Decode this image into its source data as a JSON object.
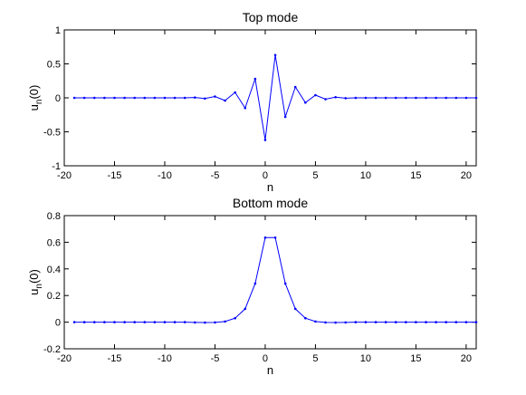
{
  "chart_data": [
    {
      "type": "line",
      "title": "Top mode",
      "xlabel": "n",
      "ylabel": "u",
      "ylabel_sub": "n",
      "ylabel_suffix": "(0)",
      "xlim": [
        -20,
        21
      ],
      "ylim": [
        -1,
        1
      ],
      "xticks": [
        -20,
        -15,
        -10,
        -5,
        0,
        5,
        10,
        15,
        20
      ],
      "yticks": [
        -1,
        -0.5,
        0,
        0.5,
        1
      ],
      "grid": false,
      "color": "#0000ff",
      "x": [
        -19,
        -18,
        -17,
        -16,
        -15,
        -14,
        -13,
        -12,
        -11,
        -10,
        -9,
        -8,
        -7,
        -6,
        -5,
        -4,
        -3,
        -2,
        -1,
        0,
        1,
        2,
        3,
        4,
        5,
        6,
        7,
        8,
        9,
        10,
        11,
        12,
        13,
        14,
        15,
        16,
        17,
        18,
        19,
        20,
        21
      ],
      "y": [
        0,
        0,
        0,
        0,
        0,
        0,
        0,
        0,
        0,
        0,
        0,
        0,
        0.005,
        -0.01,
        0.02,
        -0.04,
        0.08,
        -0.15,
        0.28,
        -0.62,
        0.63,
        -0.28,
        0.16,
        -0.07,
        0.04,
        -0.02,
        0.01,
        -0.005,
        0,
        0,
        0,
        0,
        0,
        0,
        0,
        0,
        0,
        0,
        0,
        0,
        0
      ]
    },
    {
      "type": "line",
      "title": "Bottom mode",
      "xlabel": "n",
      "ylabel": "u",
      "ylabel_sub": "n",
      "ylabel_suffix": "(0)",
      "xlim": [
        -20,
        21
      ],
      "ylim": [
        -0.2,
        0.8
      ],
      "xticks": [
        -20,
        -15,
        -10,
        -5,
        0,
        5,
        10,
        15,
        20
      ],
      "yticks": [
        -0.2,
        0,
        0.2,
        0.4,
        0.6,
        0.8
      ],
      "grid": false,
      "color": "#0000ff",
      "x": [
        -19,
        -18,
        -17,
        -16,
        -15,
        -14,
        -13,
        -12,
        -11,
        -10,
        -9,
        -8,
        -7,
        -6,
        -5,
        -4,
        -3,
        -2,
        -1,
        0,
        1,
        2,
        3,
        4,
        5,
        6,
        7,
        8,
        9,
        10,
        11,
        12,
        13,
        14,
        15,
        16,
        17,
        18,
        19,
        20,
        21
      ],
      "y": [
        0,
        0,
        0,
        0,
        0,
        0,
        0,
        0,
        0,
        0,
        0,
        0,
        -0.002,
        -0.003,
        -0.002,
        0.005,
        0.03,
        0.1,
        0.29,
        0.635,
        0.635,
        0.29,
        0.1,
        0.03,
        0.005,
        -0.002,
        -0.003,
        -0.002,
        0,
        0,
        0,
        0,
        0,
        0,
        0,
        0,
        0,
        0,
        0,
        0,
        0
      ]
    }
  ]
}
